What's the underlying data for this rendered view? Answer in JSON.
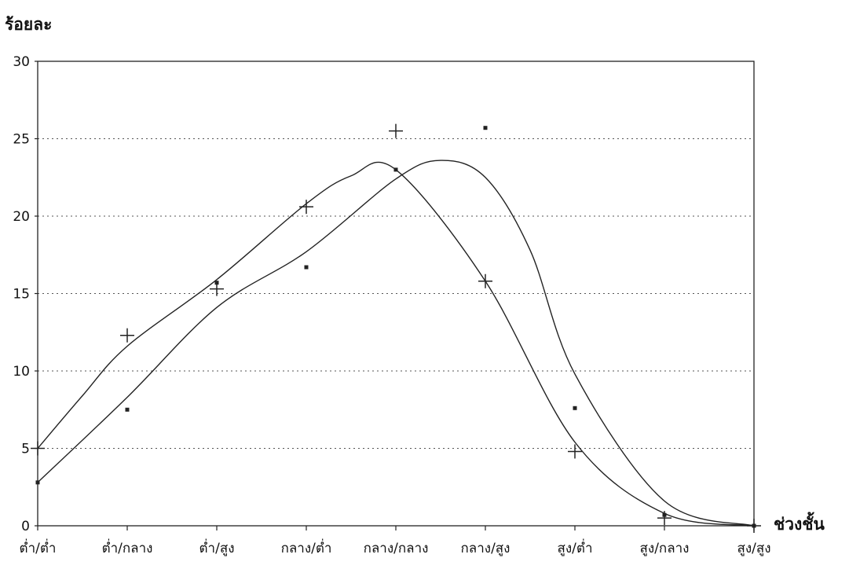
{
  "chart_data": {
    "type": "line",
    "ylabel": "ร้อยละ",
    "xlabel": "ช่วงชั้น",
    "categories": [
      "ต่ำ/ต่ำ",
      "ต่ำ/กลาง",
      "ต่ำ/สูง",
      "กลาง/ต่ำ",
      "กลาง/กลาง",
      "กลาง/สูง",
      "สูง/ต่ำ",
      "สูง/กลาง",
      "สูง/สูง"
    ],
    "ylim": [
      0,
      30
    ],
    "yticks": [
      "0",
      "5",
      "10",
      "15",
      "20",
      "25",
      "30"
    ],
    "grid": true,
    "series": [
      {
        "marker": "plus",
        "color": "#222222",
        "values": [
          5.0,
          12.3,
          15.3,
          20.6,
          25.5,
          15.8,
          4.8,
          0.5,
          0.0
        ]
      },
      {
        "marker": "dot",
        "color": "#222222",
        "values": [
          2.8,
          7.5,
          15.7,
          16.7,
          23.0,
          25.7,
          7.6,
          0.7,
          0.0
        ]
      }
    ],
    "fitted_curves": [
      {
        "follows": "plus",
        "x": [
          0,
          0.5,
          1,
          2,
          3,
          3.5,
          4,
          5,
          6,
          7,
          8
        ],
        "y": [
          5.0,
          8.4,
          11.6,
          15.9,
          20.8,
          22.6,
          23.0,
          15.8,
          5.4,
          0.8,
          0.0
        ]
      },
      {
        "follows": "dot",
        "x": [
          0,
          1,
          2,
          3,
          4,
          4.5,
          5,
          5.5,
          6,
          7,
          8
        ],
        "y": [
          2.8,
          8.3,
          14.1,
          17.7,
          22.4,
          23.6,
          22.5,
          17.8,
          9.8,
          1.6,
          0.0
        ]
      }
    ]
  }
}
